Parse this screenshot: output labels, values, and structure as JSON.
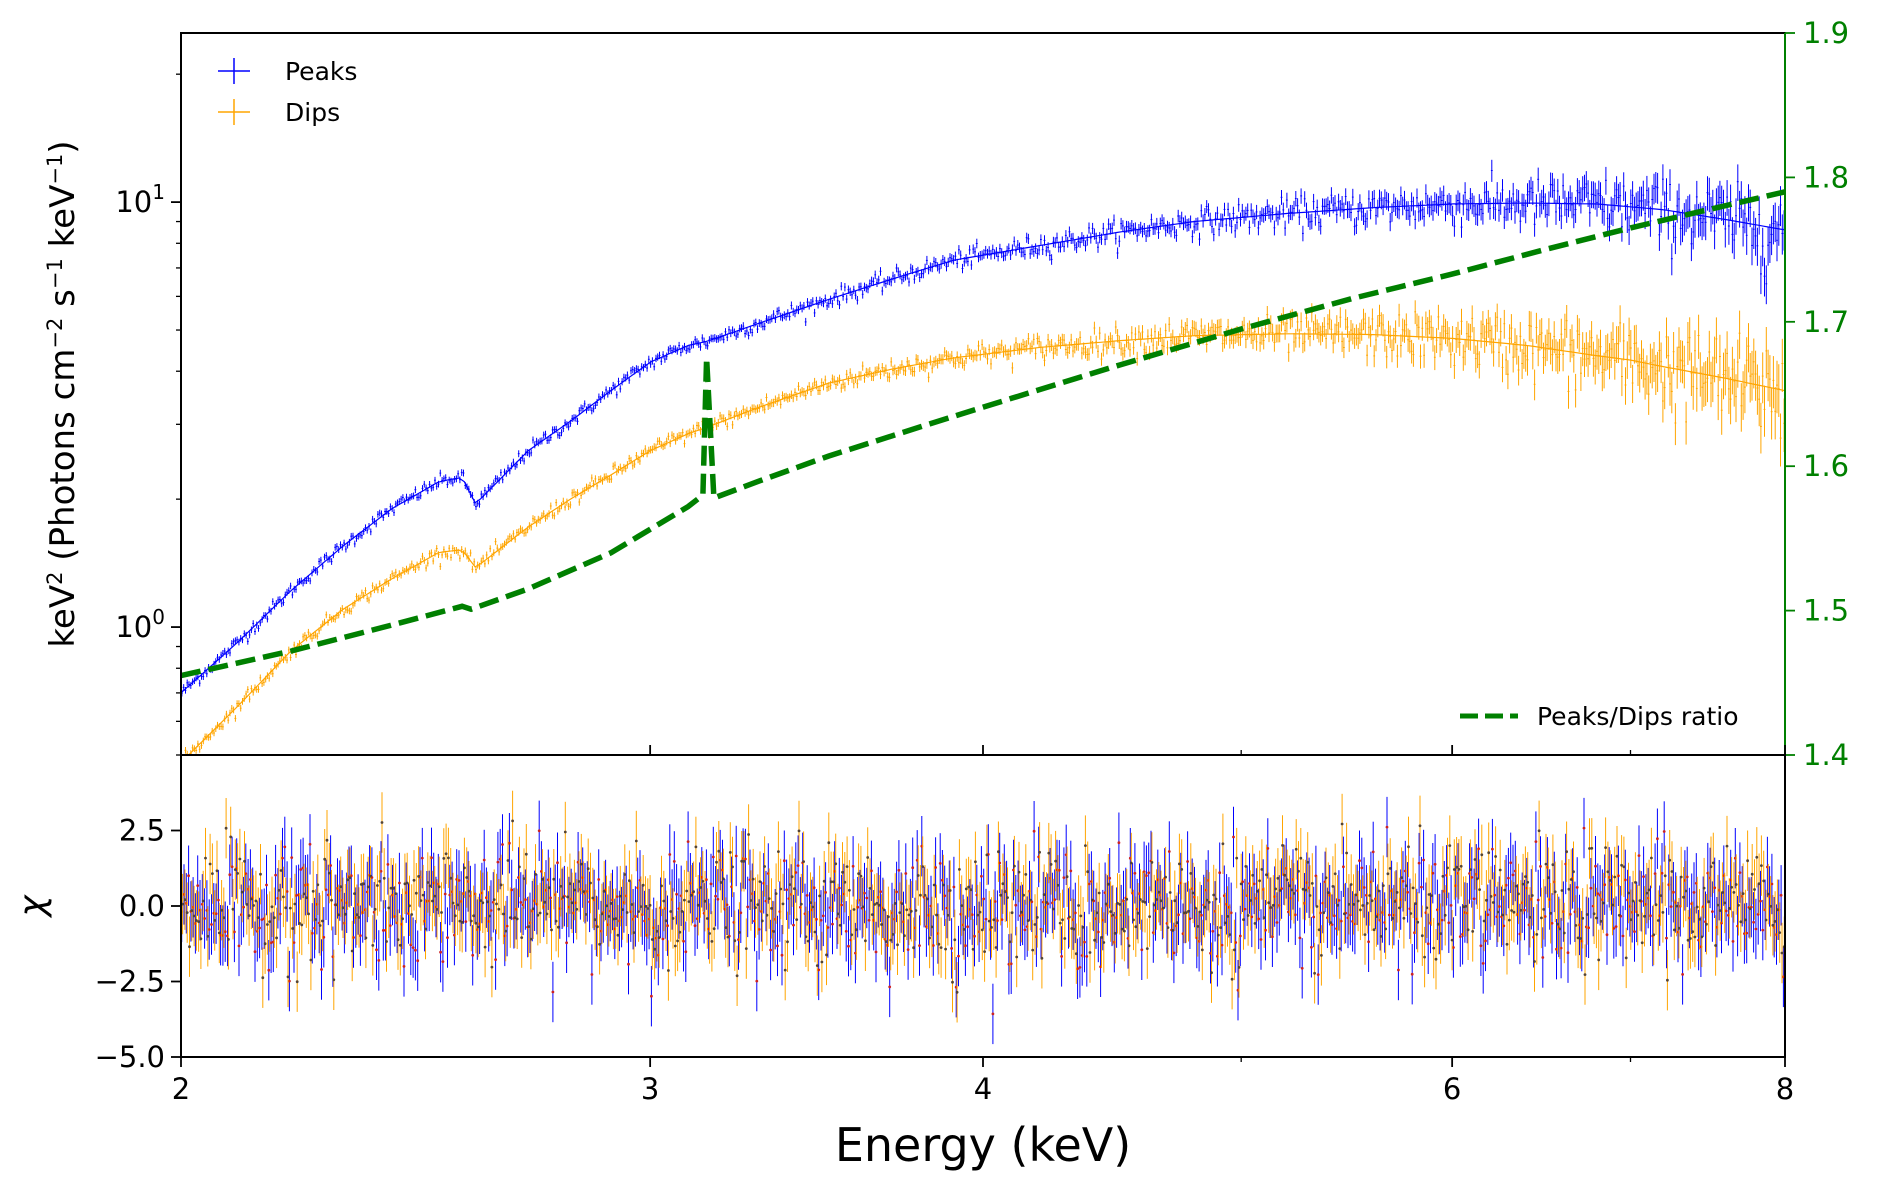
{
  "chart_data": [
    {
      "type": "scatter",
      "panel": "spectrum",
      "x_scale": "log",
      "y_scale": "log",
      "ylabel_prefix": "keV",
      "ylabel_main": "(Photons cm",
      "ylabel_s": "s",
      "ylabel_kev": "keV",
      "ylabel_close": ")",
      "ylabel_exp_2": "2",
      "ylabel_exp_m2": "−2",
      "ylabel_exp_m1": "−1",
      "xlim": [
        2,
        8
      ],
      "ylim": [
        0.5,
        25
      ],
      "y_ticks": [
        {
          "value": 1,
          "base": "10",
          "exp": "0"
        },
        {
          "value": 10,
          "base": "10",
          "exp": "1"
        }
      ],
      "legend_position": "upper left",
      "series": [
        {
          "name": "Peaks",
          "color": "#0000ff",
          "style": "points with error bars and model line",
          "x": [
            2.0,
            2.1,
            2.2,
            2.3,
            2.4,
            2.5,
            2.55,
            2.58,
            2.7,
            2.8,
            2.9,
            3.0,
            3.1,
            3.15,
            3.3,
            3.5,
            3.7,
            3.9,
            4.2,
            4.5,
            4.8,
            5.2,
            5.6,
            6.0,
            6.4,
            6.8,
            7.2,
            7.6,
            8.0
          ],
          "y": [
            0.7,
            0.92,
            1.22,
            1.55,
            1.9,
            2.2,
            2.25,
            1.95,
            2.6,
            3.05,
            3.6,
            4.2,
            4.6,
            4.7,
            5.2,
            5.9,
            6.6,
            7.3,
            7.9,
            8.5,
            9.0,
            9.4,
            9.7,
            9.9,
            9.95,
            9.9,
            9.6,
            9.1,
            8.6
          ]
        },
        {
          "name": "Dips",
          "color": "#ffa500",
          "style": "points with error bars and model line",
          "x": [
            2.0,
            2.1,
            2.2,
            2.3,
            2.4,
            2.5,
            2.55,
            2.58,
            2.7,
            2.8,
            2.9,
            3.0,
            3.1,
            3.15,
            3.3,
            3.5,
            3.7,
            3.9,
            4.2,
            4.5,
            4.8,
            5.2,
            5.6,
            6.0,
            6.4,
            6.8,
            7.0,
            7.2,
            7.6,
            8.0
          ],
          "y": [
            0.48,
            0.65,
            0.88,
            1.1,
            1.3,
            1.5,
            1.52,
            1.38,
            1.72,
            2.0,
            2.28,
            2.6,
            2.85,
            2.95,
            3.3,
            3.75,
            4.05,
            4.3,
            4.55,
            4.72,
            4.85,
            4.9,
            4.88,
            4.78,
            4.6,
            4.35,
            4.25,
            4.1,
            3.85,
            3.6
          ]
        }
      ]
    },
    {
      "type": "line",
      "panel": "spectrum-right-axis",
      "y_ticks": [
        "1.4",
        "1.5",
        "1.6",
        "1.7",
        "1.8",
        "1.9"
      ],
      "ylim": [
        1.4,
        1.9
      ],
      "axis_color": "#008000",
      "legend_position": "lower right",
      "series": [
        {
          "name": "Peaks/Dips ratio",
          "color": "#008000",
          "style": "dashed",
          "x": [
            2.0,
            2.2,
            2.4,
            2.55,
            2.57,
            2.7,
            2.9,
            3.1,
            3.14,
            3.15,
            3.17,
            3.3,
            3.5,
            3.8,
            4.1,
            4.5,
            5.0,
            5.5,
            6.0,
            6.5,
            7.0,
            7.5,
            8.0
          ],
          "y": [
            1.455,
            1.472,
            1.49,
            1.503,
            1.501,
            1.515,
            1.54,
            1.572,
            1.58,
            1.675,
            1.578,
            1.59,
            1.607,
            1.628,
            1.647,
            1.67,
            1.695,
            1.716,
            1.733,
            1.75,
            1.765,
            1.778,
            1.79
          ]
        }
      ]
    },
    {
      "type": "scatter",
      "panel": "residuals",
      "xlabel": "Energy (keV)",
      "ylabel": "χ",
      "x_ticks": [
        "2",
        "3",
        "4",
        "6",
        "8"
      ],
      "y_ticks": [
        "−5.0",
        "−2.5",
        "0.0",
        "2.5"
      ],
      "xlim": [
        2,
        8
      ],
      "ylim": [
        -5.0,
        5.0
      ],
      "series": [
        {
          "name": "Peaks",
          "color": "#0000ff",
          "style": "chi residuals with unit error bars"
        },
        {
          "name": "Dips",
          "color": "#ffa500",
          "style": "chi residuals with unit error bars"
        }
      ]
    }
  ]
}
